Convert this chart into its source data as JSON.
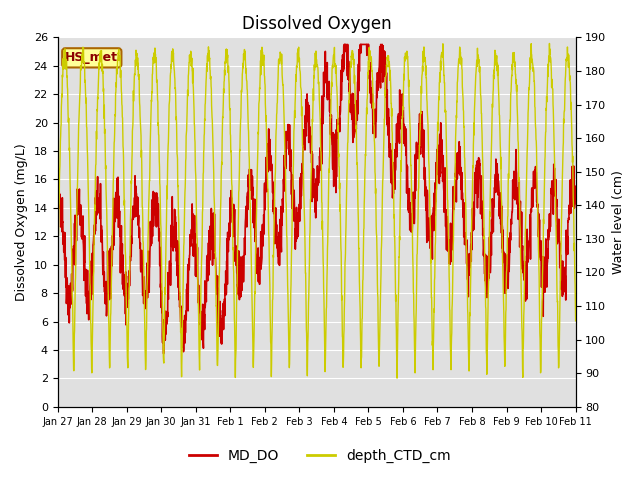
{
  "title": "Dissolved Oxygen",
  "ylabel_left": "Dissolved Oxygen (mg/L)",
  "ylabel_right": "Water level (cm)",
  "xlabel": "",
  "ylim_left": [
    0,
    26
  ],
  "ylim_right": [
    80,
    190
  ],
  "yticks_left": [
    0,
    2,
    4,
    6,
    8,
    10,
    12,
    14,
    16,
    18,
    20,
    22,
    24,
    26
  ],
  "yticks_right": [
    80,
    90,
    100,
    110,
    120,
    130,
    140,
    150,
    160,
    170,
    180,
    190
  ],
  "xtick_labels": [
    "Jan 27",
    "Jan 28",
    "Jan 29",
    "Jan 30",
    "Jan 31",
    "Feb 1",
    "Feb 2",
    "Feb 3",
    "Feb 4",
    "Feb 5",
    "Feb 6",
    "Feb 7",
    "Feb 8",
    "Feb 9",
    "Feb 10",
    "Feb 11"
  ],
  "color_DO": "#cc0000",
  "color_depth": "#cccc00",
  "color_bg": "#e0e0e0",
  "color_box_fill": "#ffff99",
  "color_box_edge": "#aa6600",
  "annotation_text": "HS_met",
  "legend_DO": "MD_DO",
  "legend_depth": "depth_CTD_cm",
  "title_fontsize": 12,
  "label_fontsize": 9,
  "tick_fontsize": 8,
  "legend_fontsize": 10
}
